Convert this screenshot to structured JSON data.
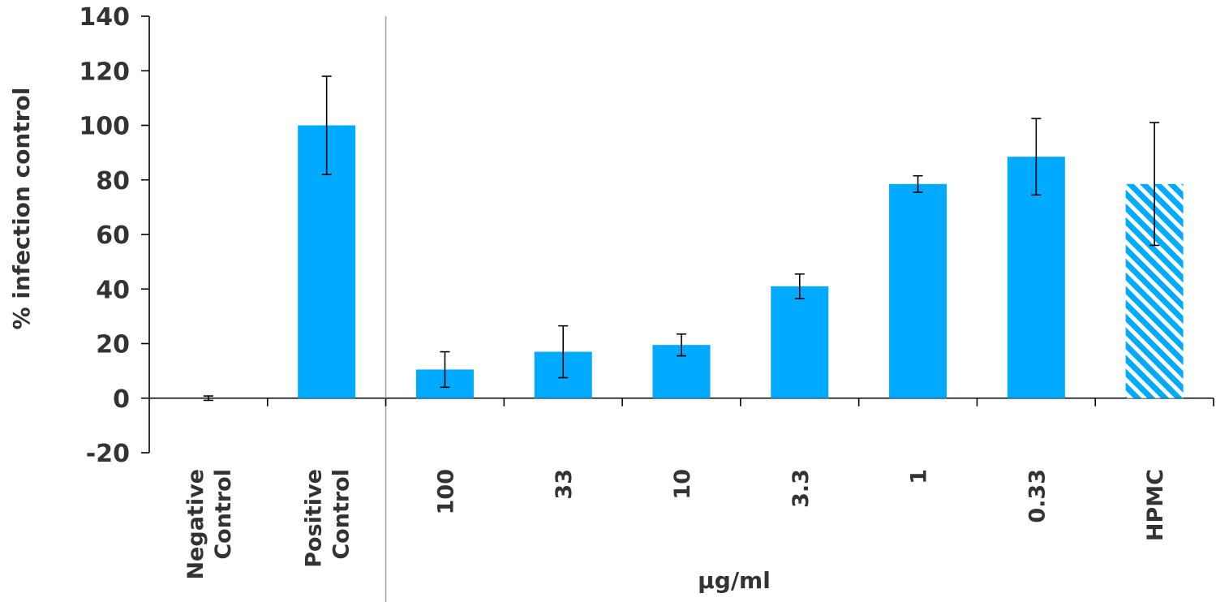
{
  "chart_data": {
    "type": "bar",
    "categories": [
      [
        "Negative",
        "Control"
      ],
      [
        "Positive",
        "Control"
      ],
      [
        "100"
      ],
      [
        "33"
      ],
      [
        "10"
      ],
      [
        "3.3"
      ],
      [
        "1"
      ],
      [
        "0.33"
      ],
      [
        "HPMC"
      ]
    ],
    "values": [
      0,
      100,
      10.5,
      17,
      19.5,
      41,
      78.5,
      88.5,
      78.5
    ],
    "errors": [
      0.8,
      18,
      6.5,
      9.5,
      4,
      4.5,
      3,
      14,
      22.5
    ],
    "patterned": [
      false,
      false,
      false,
      false,
      false,
      false,
      false,
      false,
      true
    ],
    "title": "",
    "xlabel": "µg/ml",
    "ylabel": "% infection control",
    "ylim": [
      -20,
      140
    ],
    "yticks": [
      -20,
      0,
      20,
      40,
      60,
      80,
      100,
      120,
      140
    ],
    "grid": false,
    "legend": "none",
    "colors": {
      "bar": "#00aaff",
      "hatch_stripe": "#ffffff",
      "axis": "#000000",
      "separator": "#a6a6a6",
      "text": "#333333"
    }
  }
}
